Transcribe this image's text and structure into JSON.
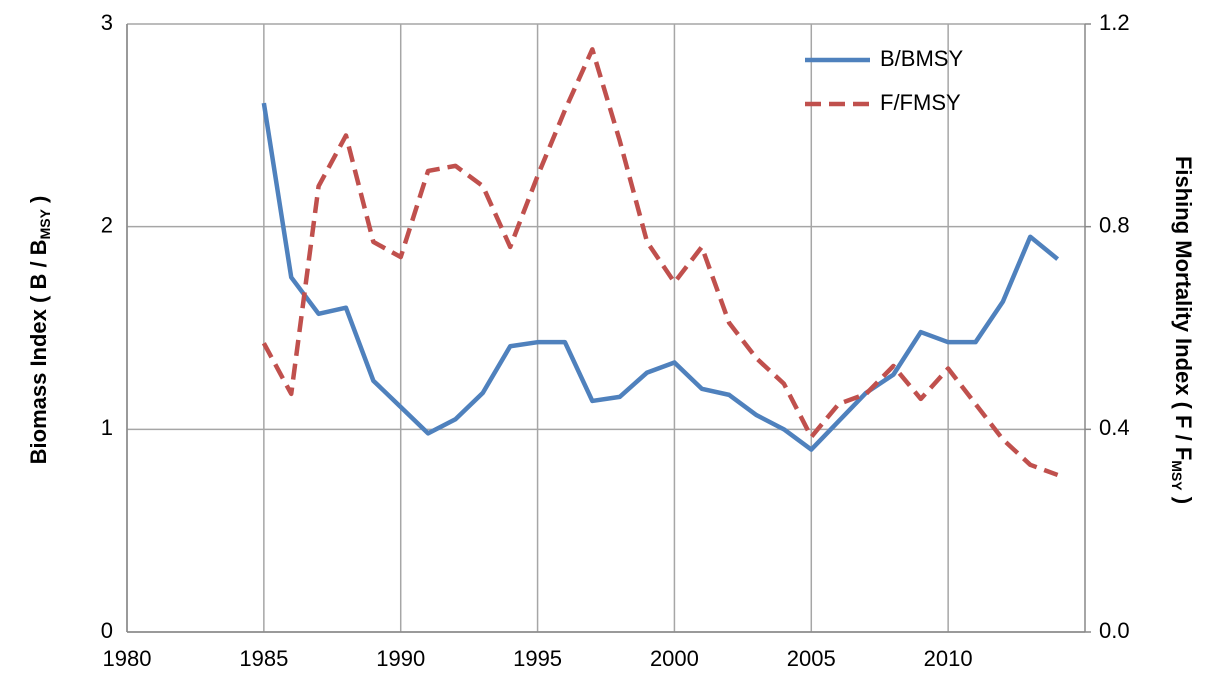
{
  "chart_data": {
    "type": "line",
    "y_label": [
      "Biomass Index ( B / B",
      "MSY",
      " )"
    ],
    "y2_label": [
      "Fishing Mortality Index ( F / F",
      "MSY",
      " )"
    ],
    "x": [
      1985,
      1986,
      1987,
      1988,
      1989,
      1990,
      1991,
      1992,
      1993,
      1994,
      1995,
      1996,
      1997,
      1998,
      1999,
      2000,
      2001,
      2002,
      2003,
      2004,
      2005,
      2006,
      2007,
      2008,
      2009,
      2010,
      2011,
      2012,
      2013,
      2014
    ],
    "series": [
      {
        "name": "B/BMSY",
        "color": "#4f81bd",
        "dash": false,
        "axis": "y",
        "values": [
          2.61,
          1.75,
          1.57,
          1.6,
          1.24,
          1.11,
          0.98,
          1.05,
          1.18,
          1.41,
          1.43,
          1.43,
          1.14,
          1.16,
          1.28,
          1.33,
          1.2,
          1.17,
          1.07,
          1.0,
          0.9,
          1.04,
          1.18,
          1.27,
          1.48,
          1.43,
          1.43,
          1.63,
          1.95,
          1.84
        ]
      },
      {
        "name": "F/FMSY",
        "color": "#c0504d",
        "dash": true,
        "axis": "y2",
        "values": [
          0.57,
          0.47,
          0.88,
          0.98,
          0.77,
          0.74,
          0.91,
          0.92,
          0.88,
          0.76,
          0.9,
          1.03,
          1.15,
          0.97,
          0.77,
          0.69,
          0.76,
          0.61,
          0.54,
          0.49,
          0.385,
          0.45,
          0.47,
          0.525,
          0.46,
          0.52,
          0.45,
          0.38,
          0.33,
          0.31
        ]
      }
    ],
    "xlim": [
      1980,
      2015
    ],
    "xticks": [
      1980,
      1985,
      1990,
      1995,
      2000,
      2005,
      2010
    ],
    "ylim": [
      0,
      3
    ],
    "yticks": [
      0,
      1,
      2,
      3
    ],
    "y2lim": [
      0,
      1.2
    ],
    "y2ticks": [
      {
        "value": 0,
        "label": "0.0"
      },
      {
        "value": 0.4,
        "label": "0.4"
      },
      {
        "value": 0.8,
        "label": "0.8"
      },
      {
        "value": 1.2,
        "label": "1.2"
      }
    ],
    "grid": true,
    "legend": "top-right"
  }
}
